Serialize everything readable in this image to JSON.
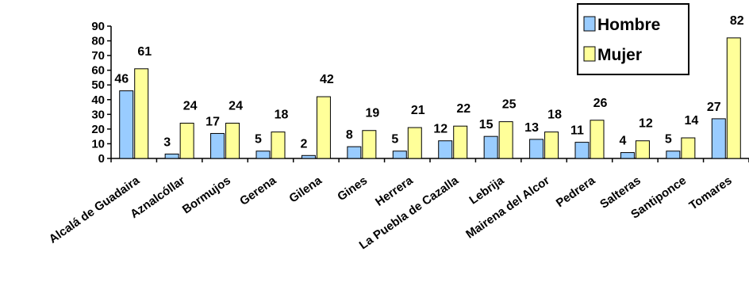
{
  "chart_data": {
    "type": "bar",
    "title": "",
    "xlabel": "",
    "ylabel": "",
    "ylim": [
      0,
      90
    ],
    "yticks": [
      0,
      10,
      20,
      30,
      40,
      50,
      60,
      70,
      80,
      90
    ],
    "grid": false,
    "legend_position": "top-right",
    "categories": [
      "Alcalá de Guadaira",
      "Aznalcóllar",
      "Bormujos",
      "Gerena",
      "Gilena",
      "Gines",
      "Herrera",
      "La Puebla de Cazalla",
      "Lebrija",
      "Mairena del Alcor",
      "Pedrera",
      "Salteras",
      "Santiponce",
      "Tomares"
    ],
    "series": [
      {
        "name": "Hombre",
        "color": "#99ccff",
        "values": [
          46,
          3,
          17,
          5,
          2,
          8,
          5,
          12,
          15,
          13,
          11,
          4,
          5,
          27
        ]
      },
      {
        "name": "Mujer",
        "color": "#ffff99",
        "values": [
          61,
          24,
          24,
          18,
          42,
          19,
          21,
          22,
          25,
          18,
          26,
          12,
          14,
          82
        ]
      }
    ]
  }
}
